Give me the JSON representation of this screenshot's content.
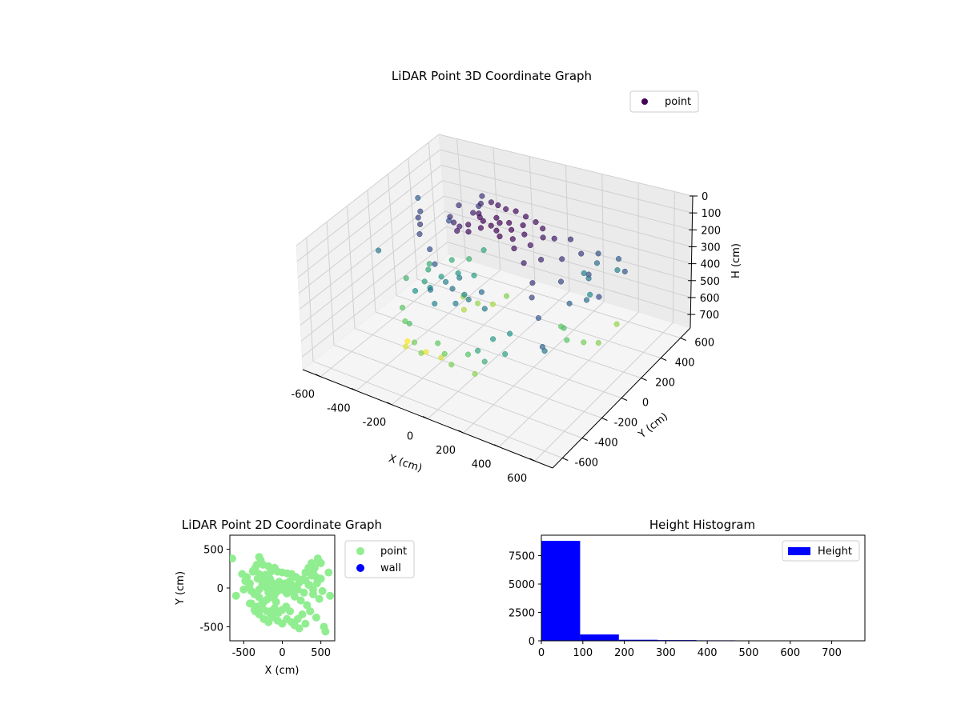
{
  "chart_data": [
    {
      "type": "scatter",
      "subtype": "scatter3d",
      "title": "LiDAR Point 3D Coordinate Graph",
      "xlabel": "X (cm)",
      "ylabel": "Y (cm)",
      "zlabel": "H (cm)",
      "xlim": [
        -700,
        700
      ],
      "ylim": [
        -700,
        700
      ],
      "zlim": [
        780,
        0
      ],
      "z_inverted": true,
      "x_ticks": [
        -600,
        -400,
        -200,
        0,
        200,
        400,
        600
      ],
      "y_ticks": [
        -600,
        -400,
        -200,
        0,
        200,
        400,
        600
      ],
      "z_ticks": [
        0,
        100,
        200,
        300,
        400,
        500,
        600,
        700
      ],
      "grid": true,
      "legend": {
        "position": "top-right",
        "entries": [
          {
            "label": "point",
            "color": "#440154"
          }
        ]
      },
      "colormap": "viridis",
      "color_by": "H",
      "series": [
        {
          "name": "point",
          "points": [
            [
              -650,
              380,
              230
            ],
            [
              -520,
              180,
              170
            ],
            [
              -480,
              90,
              150
            ],
            [
              -430,
              20,
              140
            ],
            [
              -400,
              -40,
              160
            ],
            [
              -380,
              210,
              200
            ],
            [
              -350,
              260,
              120
            ],
            [
              -320,
              120,
              110
            ],
            [
              -300,
              -120,
              180
            ],
            [
              -280,
              330,
              140
            ],
            [
              -260,
              50,
              90
            ],
            [
              -240,
              -180,
              220
            ],
            [
              -220,
              170,
              80
            ],
            [
              -200,
              0,
              70
            ],
            [
              -180,
              -60,
              60
            ],
            [
              -160,
              120,
              40
            ],
            [
              -140,
              -20,
              30
            ],
            [
              -120,
              60,
              20
            ],
            [
              -100,
              -90,
              25
            ],
            [
              -80,
              20,
              10
            ],
            [
              -60,
              -40,
              15
            ],
            [
              -40,
              80,
              10
            ],
            [
              -20,
              -10,
              5
            ],
            [
              0,
              40,
              8
            ],
            [
              20,
              -30,
              12
            ],
            [
              40,
              60,
              6
            ],
            [
              60,
              -70,
              14
            ],
            [
              80,
              10,
              10
            ],
            [
              100,
              90,
              18
            ],
            [
              120,
              -50,
              22
            ],
            [
              140,
              30,
              30
            ],
            [
              160,
              -110,
              35
            ],
            [
              180,
              140,
              40
            ],
            [
              200,
              -20,
              50
            ],
            [
              220,
              70,
              45
            ],
            [
              240,
              -160,
              70
            ],
            [
              260,
              110,
              60
            ],
            [
              280,
              -60,
              90
            ],
            [
              300,
              200,
              100
            ],
            [
              320,
              -220,
              130
            ],
            [
              340,
              40,
              120
            ],
            [
              360,
              -300,
              160
            ],
            [
              380,
              160,
              140
            ],
            [
              400,
              -80,
              170
            ],
            [
              420,
              260,
              180
            ],
            [
              440,
              -380,
              210
            ],
            [
              460,
              90,
              200
            ],
            [
              480,
              -140,
              240
            ],
            [
              500,
              320,
              220
            ],
            [
              520,
              -40,
              260
            ],
            [
              -300,
              400,
              120
            ],
            [
              -250,
              300,
              100
            ],
            [
              -180,
              280,
              60
            ],
            [
              -120,
              240,
              40
            ],
            [
              -60,
              210,
              30
            ],
            [
              0,
              200,
              20
            ],
            [
              60,
              190,
              30
            ],
            [
              120,
              180,
              40
            ],
            [
              -200,
              -300,
              300
            ],
            [
              -150,
              -350,
              340
            ],
            [
              -100,
              -260,
              280
            ],
            [
              -50,
              -320,
              320
            ],
            [
              0,
              -280,
              300
            ],
            [
              50,
              -240,
              260
            ],
            [
              100,
              -300,
              310
            ],
            [
              -320,
              -240,
              380
            ],
            [
              -260,
              -200,
              360
            ],
            [
              -200,
              -150,
              330
            ],
            [
              -140,
              -120,
              300
            ],
            [
              -80,
              -180,
              350
            ],
            [
              -360,
              -80,
              420
            ],
            [
              -300,
              -20,
              400
            ],
            [
              -240,
              40,
              390
            ],
            [
              -180,
              90,
              410
            ],
            [
              -420,
              60,
              440
            ],
            [
              -460,
              140,
              460
            ],
            [
              -500,
              -20,
              480
            ],
            [
              -380,
              220,
              450
            ],
            [
              -330,
              300,
              470
            ],
            [
              -280,
              360,
              430
            ],
            [
              200,
              -400,
              400
            ],
            [
              260,
              -340,
              380
            ],
            [
              300,
              -460,
              420
            ],
            [
              160,
              -480,
              440
            ],
            [
              220,
              -520,
              460
            ],
            [
              340,
              260,
              320
            ],
            [
              400,
              200,
              300
            ],
            [
              440,
              140,
              350
            ],
            [
              380,
              320,
              280
            ],
            [
              460,
              380,
              330
            ],
            [
              -420,
              -200,
              540
            ],
            [
              -360,
              -280,
              560
            ],
            [
              -300,
              -340,
              520
            ],
            [
              -240,
              -400,
              580
            ],
            [
              -180,
              -440,
              600
            ],
            [
              -120,
              -380,
              550
            ],
            [
              -60,
              -420,
              570
            ],
            [
              0,
              -460,
              590
            ],
            [
              60,
              -400,
              540
            ],
            [
              120,
              -440,
              610
            ],
            [
              -200,
              150,
              620
            ],
            [
              -150,
              210,
              640
            ],
            [
              -100,
              260,
              600
            ],
            [
              -250,
              100,
              650
            ],
            [
              -300,
              180,
              630
            ],
            [
              300,
              100,
              560
            ],
            [
              350,
              40,
              520
            ],
            [
              400,
              -20,
              540
            ],
            [
              450,
              60,
              580
            ],
            [
              500,
              120,
              600
            ],
            [
              -350,
              -300,
              700
            ],
            [
              -260,
              -260,
              720
            ],
            [
              -150,
              -300,
              690
            ],
            [
              -400,
              -200,
              740
            ],
            [
              480,
              340,
              620
            ],
            [
              540,
              -500,
              300
            ],
            [
              560,
              -560,
              240
            ],
            [
              600,
              200,
              200
            ],
            [
              620,
              -100,
              180
            ],
            [
              -600,
              -100,
              300
            ]
          ]
        }
      ]
    },
    {
      "type": "scatter",
      "title": "LiDAR Point 2D Coordinate Graph",
      "xlabel": "X (cm)",
      "ylabel": "Y (cm)",
      "xlim": [
        -680,
        680
      ],
      "ylim": [
        -680,
        680
      ],
      "x_ticks": [
        -500,
        0,
        500
      ],
      "y_ticks": [
        -500,
        0,
        500
      ],
      "grid": false,
      "legend": {
        "position": "right-outside",
        "entries": [
          {
            "label": "point",
            "color": "#90ee90"
          },
          {
            "label": "wall",
            "color": "#0000ff"
          }
        ]
      },
      "series": [
        {
          "name": "point",
          "color": "#90ee90",
          "points": "same-as-3d-xy"
        },
        {
          "name": "wall",
          "color": "#0000ff",
          "points": []
        }
      ]
    },
    {
      "type": "bar",
      "subtype": "histogram",
      "title": "Height Histogram",
      "xlabel": "",
      "ylabel": "",
      "xlim": [
        0,
        780
      ],
      "ylim": [
        0,
        9300
      ],
      "x_ticks": [
        0,
        100,
        200,
        300,
        400,
        500,
        600,
        700
      ],
      "y_ticks": [
        0,
        2500,
        5000,
        7500
      ],
      "grid": false,
      "legend": {
        "position": "top-right",
        "entries": [
          {
            "label": "Height",
            "color": "#0000ff"
          }
        ]
      },
      "bin_edges": [
        0,
        93.5,
        187,
        280.5,
        374,
        467.5,
        561,
        654.5,
        748
      ],
      "values": [
        8800,
        560,
        90,
        60,
        40,
        10,
        5,
        3
      ],
      "color": "#0000ff"
    }
  ]
}
